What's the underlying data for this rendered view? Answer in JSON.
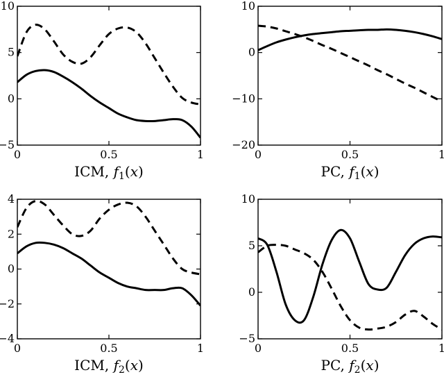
{
  "chart_data": [
    {
      "type": "line",
      "xlabel": "ICM, f1(x)",
      "xlim": [
        0,
        1
      ],
      "ylim": [
        -5,
        10
      ],
      "xticks": [
        0,
        0.5,
        1
      ],
      "xtick_labels": [
        "0",
        "0.5",
        "1"
      ],
      "yticks": [
        -5,
        0,
        5,
        10
      ],
      "ytick_labels": [
        "−5",
        "0",
        "5",
        "10"
      ],
      "x": [
        0,
        0.05,
        0.1,
        0.15,
        0.2,
        0.25,
        0.3,
        0.35,
        0.4,
        0.45,
        0.5,
        0.55,
        0.6,
        0.65,
        0.7,
        0.75,
        0.8,
        0.85,
        0.9,
        0.95,
        1.0
      ],
      "series": [
        {
          "style": "solid",
          "values": [
            1.8,
            2.6,
            3.0,
            3.1,
            2.9,
            2.4,
            1.8,
            1.1,
            0.3,
            -0.4,
            -1.0,
            -1.6,
            -2.0,
            -2.3,
            -2.4,
            -2.4,
            -2.3,
            -2.2,
            -2.3,
            -3.0,
            -4.2
          ]
        },
        {
          "style": "dashed",
          "values": [
            4.6,
            7.2,
            8.0,
            7.5,
            6.2,
            4.8,
            4.0,
            3.8,
            4.5,
            5.8,
            7.0,
            7.6,
            7.7,
            7.2,
            6.0,
            4.4,
            2.8,
            1.3,
            0.1,
            -0.4,
            -0.6
          ]
        }
      ]
    },
    {
      "type": "line",
      "xlabel": "PC, f1(x)",
      "xlim": [
        0,
        1
      ],
      "ylim": [
        -20,
        10
      ],
      "xticks": [
        0,
        0.5,
        1
      ],
      "xtick_labels": [
        "0",
        "0.5",
        "1"
      ],
      "yticks": [
        -20,
        -10,
        0,
        10
      ],
      "ytick_labels": [
        "−20",
        "−10",
        "0",
        "10"
      ],
      "x": [
        0,
        0.05,
        0.1,
        0.15,
        0.2,
        0.25,
        0.3,
        0.35,
        0.4,
        0.45,
        0.5,
        0.55,
        0.6,
        0.65,
        0.7,
        0.75,
        0.8,
        0.85,
        0.9,
        0.95,
        1.0
      ],
      "series": [
        {
          "style": "solid",
          "values": [
            0.5,
            1.4,
            2.2,
            2.8,
            3.3,
            3.7,
            4.0,
            4.2,
            4.4,
            4.6,
            4.7,
            4.8,
            4.9,
            4.9,
            5.0,
            4.9,
            4.7,
            4.4,
            4.0,
            3.5,
            2.9
          ]
        },
        {
          "style": "dashed",
          "values": [
            5.8,
            5.6,
            5.2,
            4.6,
            4.0,
            3.3,
            2.5,
            1.6,
            0.8,
            -0.1,
            -1.0,
            -1.9,
            -2.8,
            -3.8,
            -4.7,
            -5.7,
            -6.7,
            -7.6,
            -8.6,
            -9.6,
            -10.6
          ]
        }
      ]
    },
    {
      "type": "line",
      "xlabel": "ICM, f2(x)",
      "xlim": [
        0,
        1
      ],
      "ylim": [
        -4,
        4
      ],
      "xticks": [
        0,
        0.5,
        1
      ],
      "xtick_labels": [
        "0",
        "0.5",
        "1"
      ],
      "yticks": [
        -4,
        -2,
        0,
        2,
        4
      ],
      "ytick_labels": [
        "−4",
        "−2",
        "0",
        "2",
        "4"
      ],
      "x": [
        0,
        0.05,
        0.1,
        0.15,
        0.2,
        0.25,
        0.3,
        0.35,
        0.4,
        0.45,
        0.5,
        0.55,
        0.6,
        0.65,
        0.7,
        0.75,
        0.8,
        0.85,
        0.9,
        0.95,
        1.0
      ],
      "series": [
        {
          "style": "solid",
          "values": [
            0.9,
            1.3,
            1.5,
            1.5,
            1.4,
            1.2,
            0.9,
            0.6,
            0.2,
            -0.2,
            -0.5,
            -0.8,
            -1.0,
            -1.1,
            -1.2,
            -1.2,
            -1.2,
            -1.1,
            -1.1,
            -1.5,
            -2.1
          ]
        },
        {
          "style": "dashed",
          "values": [
            2.4,
            3.5,
            3.9,
            3.7,
            3.1,
            2.5,
            2.0,
            1.9,
            2.2,
            2.9,
            3.4,
            3.7,
            3.8,
            3.6,
            3.0,
            2.2,
            1.4,
            0.6,
            0.0,
            -0.2,
            -0.3
          ]
        }
      ]
    },
    {
      "type": "line",
      "xlabel": "PC, f2(x)",
      "xlim": [
        0,
        1
      ],
      "ylim": [
        -5,
        10
      ],
      "xticks": [
        0,
        0.5,
        1
      ],
      "xtick_labels": [
        "0",
        "0.5",
        "1"
      ],
      "yticks": [
        -5,
        0,
        5,
        10
      ],
      "ytick_labels": [
        "−5",
        "0",
        "5",
        "10"
      ],
      "x": [
        0,
        0.05,
        0.1,
        0.15,
        0.2,
        0.25,
        0.3,
        0.35,
        0.4,
        0.45,
        0.5,
        0.55,
        0.6,
        0.65,
        0.7,
        0.75,
        0.8,
        0.85,
        0.9,
        0.95,
        1.0
      ],
      "series": [
        {
          "style": "solid",
          "values": [
            5.8,
            5.1,
            2.2,
            -1.3,
            -3.0,
            -3.0,
            -0.5,
            3.0,
            5.6,
            6.7,
            5.8,
            3.3,
            0.9,
            0.3,
            0.5,
            2.2,
            4.0,
            5.2,
            5.8,
            6.0,
            5.9
          ]
        },
        {
          "style": "dashed",
          "values": [
            4.3,
            5.0,
            5.1,
            5.0,
            4.6,
            4.2,
            3.5,
            2.2,
            0.4,
            -1.5,
            -3.0,
            -3.8,
            -4.0,
            -3.9,
            -3.7,
            -3.2,
            -2.4,
            -2.0,
            -2.6,
            -3.4,
            -4.0
          ]
        }
      ]
    }
  ]
}
